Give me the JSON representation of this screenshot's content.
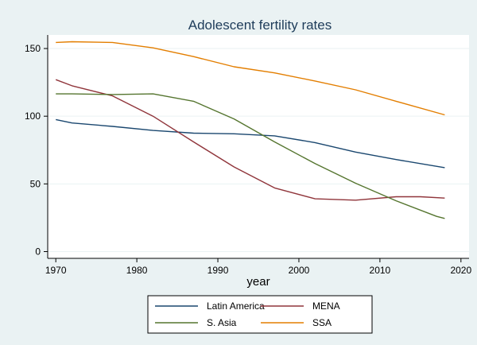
{
  "chart_data": {
    "type": "line",
    "title": "Adolescent fertility rates",
    "xlabel": "year",
    "ylabel": "",
    "xlim": [
      1969,
      2021
    ],
    "ylim": [
      -5,
      160
    ],
    "xticks": [
      1970,
      1980,
      1990,
      2000,
      2010,
      2020
    ],
    "yticks": [
      0,
      50,
      100,
      150
    ],
    "grid": "horizontal",
    "legend_position": "bottom",
    "series": [
      {
        "name": "Latin America",
        "color": "#1a476f",
        "x": [
          1970,
          1972,
          1977,
          1982,
          1987,
          1992,
          1997,
          2002,
          2007,
          2012,
          2018
        ],
        "y": [
          97.5,
          95,
          92.5,
          89.5,
          87.5,
          87,
          85.5,
          80.5,
          73.5,
          68,
          62
        ]
      },
      {
        "name": "MENA",
        "color": "#90353b",
        "x": [
          1970,
          1972,
          1977,
          1982,
          1987,
          1992,
          1997,
          2002,
          2007,
          2012,
          2015,
          2018
        ],
        "y": [
          127,
          122.5,
          115,
          100,
          81,
          62.5,
          47,
          39,
          38,
          40.5,
          40.5,
          39.5
        ]
      },
      {
        "name": "S. Asia",
        "color": "#55752f",
        "x": [
          1970,
          1972,
          1977,
          1982,
          1987,
          1992,
          1997,
          2002,
          2007,
          2012,
          2017,
          2018
        ],
        "y": [
          116.5,
          116.5,
          116,
          116.5,
          111,
          98,
          81,
          65,
          50.5,
          37.5,
          26,
          24.5
        ]
      },
      {
        "name": "SSA",
        "color": "#e37e00",
        "x": [
          1970,
          1972,
          1977,
          1982,
          1987,
          1992,
          1997,
          2002,
          2007,
          2012,
          2018
        ],
        "y": [
          154.5,
          155,
          154.5,
          150.5,
          144,
          136.5,
          132,
          126,
          119.5,
          111,
          101
        ]
      }
    ]
  }
}
